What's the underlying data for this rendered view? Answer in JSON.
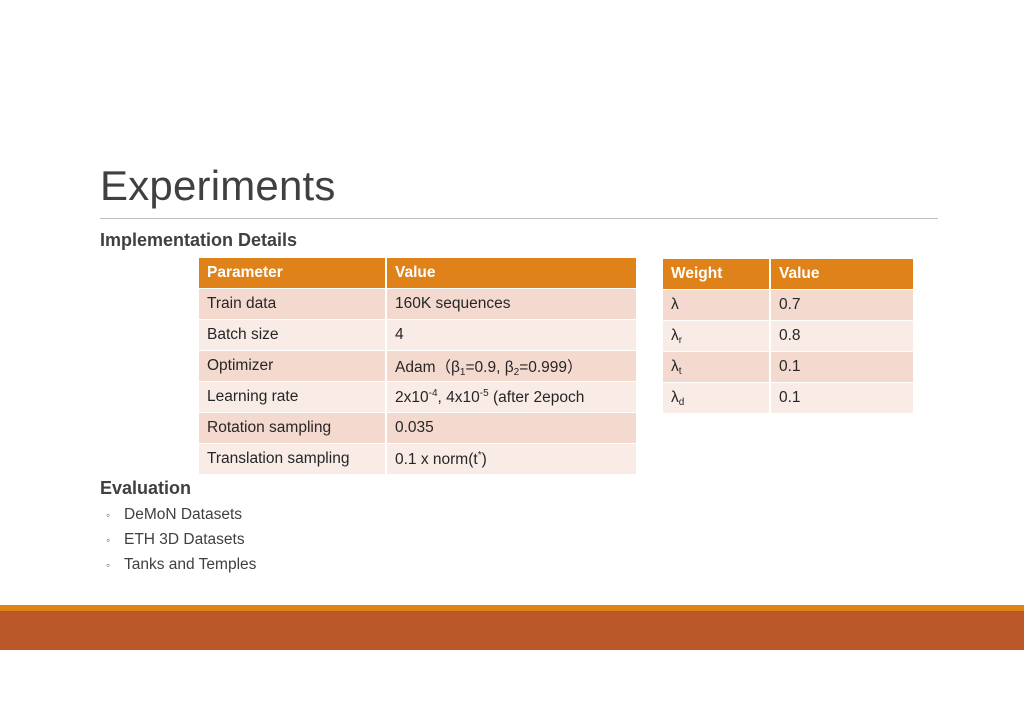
{
  "slide": {
    "title": "Experiments"
  },
  "implementation": {
    "heading": "Implementation Details",
    "param_table": {
      "headers": [
        "Parameter",
        "Value"
      ],
      "rows": [
        {
          "param": "Train data",
          "value": "160K sequences"
        },
        {
          "param": "Batch size",
          "value": "4"
        },
        {
          "param": "Optimizer",
          "value_parts": [
            "Adam（β",
            "1",
            "=0.9, β",
            "2",
            "=0.999）"
          ]
        },
        {
          "param": "Learning rate",
          "value_parts": [
            "2x10",
            "-4",
            ", 4x10",
            "-5",
            " (after 2epoch"
          ]
        },
        {
          "param": "Rotation sampling",
          "value": "0.035"
        },
        {
          "param": "Translation sampling",
          "value_parts": [
            "0.1 x norm(t",
            "*",
            ")"
          ]
        }
      ]
    },
    "weight_table": {
      "headers": [
        "Weight",
        "Value"
      ],
      "rows": [
        {
          "symbol": "λ",
          "subscript": "",
          "value": "0.7"
        },
        {
          "symbol": "λ",
          "subscript": "r",
          "value": "0.8"
        },
        {
          "symbol": "λ",
          "subscript": "t",
          "value": "0.1"
        },
        {
          "symbol": "λ",
          "subscript": "d",
          "value": "0.1"
        }
      ]
    }
  },
  "evaluation": {
    "heading": "Evaluation",
    "bullet_glyph": "◦",
    "items": [
      "DeMoN Datasets",
      "ETH 3D Datasets",
      "Tanks and Temples"
    ]
  },
  "theme": {
    "header_color": "#e0821a",
    "row_odd_color": "#f4d9cf",
    "row_even_color": "#f9ebe6",
    "footer_color": "#bb582a"
  }
}
